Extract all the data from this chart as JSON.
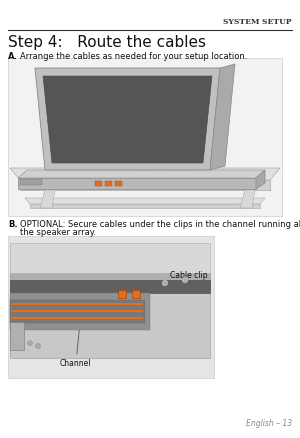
{
  "bg_color": "#ffffff",
  "header_text": "SYSTEM SETUP",
  "title_text": "Step 4:   Route the cables",
  "step_a_label": "A.",
  "step_a_text": "Arrange the cables as needed for your setup location.",
  "step_b_label": "B.",
  "step_b_line1": "OPTIONAL: Secure cables under the clips in the channel running along the length of",
  "step_b_line2": "the speaker array.",
  "label_cable_clip": "Cable clip",
  "label_channel": "Channel",
  "footer_text": "English – 13",
  "text_color": "#222222",
  "gray_light": "#e8e8e8",
  "gray_mid": "#c0c0c0",
  "gray_dark": "#888888",
  "orange": "#e07020",
  "black": "#333333"
}
